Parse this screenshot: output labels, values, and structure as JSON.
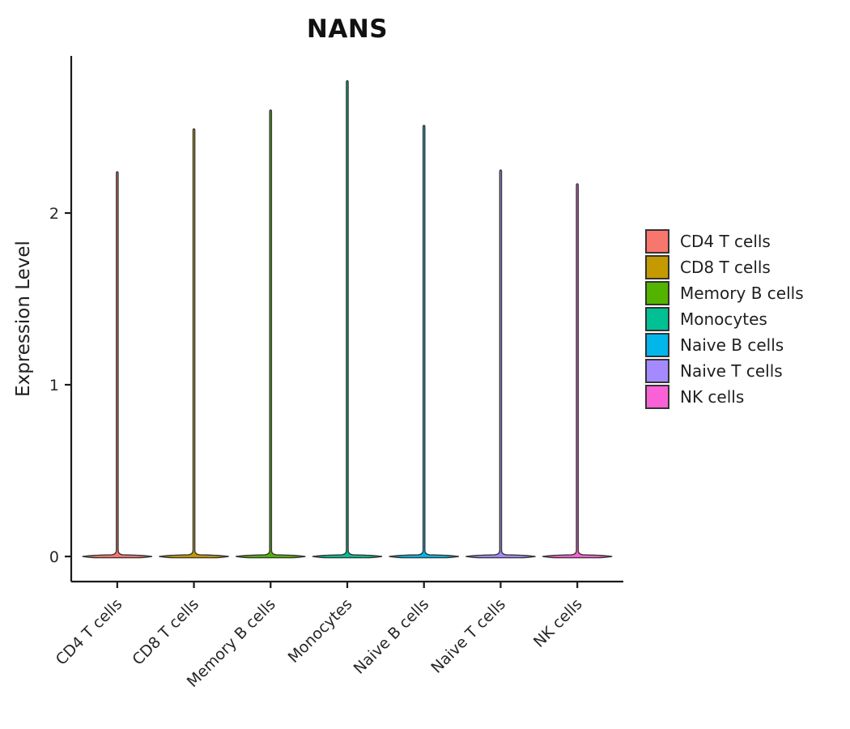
{
  "chart_data": {
    "type": "violin",
    "title": "NANS",
    "ylabel": "Expression Level",
    "xlabel": "",
    "yticks": [
      0,
      1,
      2
    ],
    "ylim": [
      -0.15,
      2.92
    ],
    "grid": false,
    "legend_position": "right",
    "axis_color": "#1a1a1a",
    "violin_outline_color": "#383838",
    "categories": [
      "CD4 T cells",
      "CD8 T cells",
      "Memory B cells",
      "Monocytes",
      "Naive B cells",
      "Naive T cells",
      "NK cells"
    ],
    "series": [
      {
        "name": "CD4 T cells",
        "color": "#F8766D",
        "ymin": 0,
        "ymax": 2.24
      },
      {
        "name": "CD8 T cells",
        "color": "#C49A00",
        "ymin": 0,
        "ymax": 2.49
      },
      {
        "name": "Memory B cells",
        "color": "#53B400",
        "ymin": 0,
        "ymax": 2.6
      },
      {
        "name": "Monocytes",
        "color": "#00C094",
        "ymin": 0,
        "ymax": 2.77
      },
      {
        "name": "Naive B cells",
        "color": "#00B6EB",
        "ymin": 0,
        "ymax": 2.51
      },
      {
        "name": "Naive T cells",
        "color": "#A58AFF",
        "ymin": 0,
        "ymax": 2.25
      },
      {
        "name": "NK cells",
        "color": "#FB61D7",
        "ymin": 0,
        "ymax": 2.17
      }
    ]
  },
  "legend": {
    "items": [
      {
        "label": "CD4 T cells",
        "color": "#F8766D"
      },
      {
        "label": "CD8 T cells",
        "color": "#C49A00"
      },
      {
        "label": "Memory B cells",
        "color": "#53B400"
      },
      {
        "label": "Monocytes",
        "color": "#00C094"
      },
      {
        "label": "Naive B cells",
        "color": "#00B6EB"
      },
      {
        "label": "Naive T cells",
        "color": "#A58AFF"
      },
      {
        "label": "NK cells",
        "color": "#FB61D7"
      }
    ]
  }
}
